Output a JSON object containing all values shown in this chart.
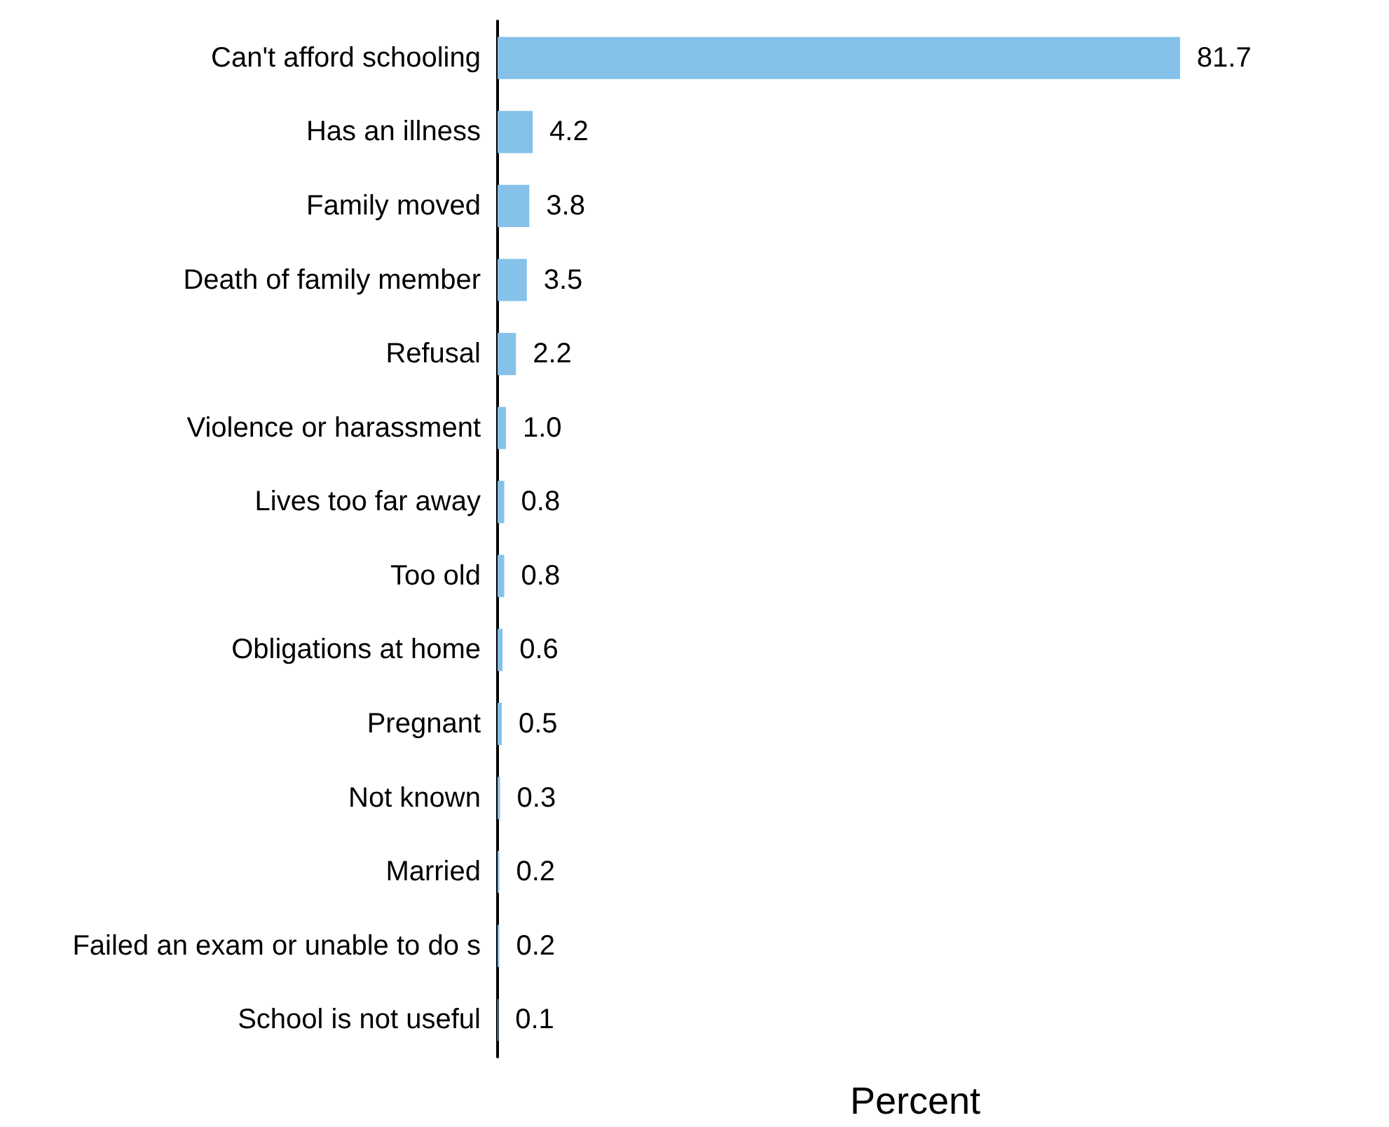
{
  "chart_data": {
    "type": "bar",
    "orientation": "horizontal",
    "xlabel": "Percent",
    "categories": [
      "Can't afford schooling",
      "Has an illness",
      "Family moved",
      "Death of family member",
      "Refusal",
      "Violence or harassment",
      "Lives too far away",
      "Too old",
      "Obligations at home",
      "Pregnant",
      "Not known",
      "Married",
      "Failed an exam or unable to do s",
      "School is not useful"
    ],
    "values": [
      81.7,
      4.2,
      3.8,
      3.5,
      2.2,
      1.0,
      0.8,
      0.8,
      0.6,
      0.5,
      0.3,
      0.2,
      0.2,
      0.1
    ],
    "value_labels": [
      "81.7",
      "4.2",
      "3.8",
      "3.5",
      "2.2",
      "1.0",
      "0.8",
      "0.8",
      "0.6",
      "0.5",
      "0.3",
      "0.2",
      "0.2",
      "0.1"
    ],
    "color": "#85c1e9",
    "tick_labels": "y"
  }
}
